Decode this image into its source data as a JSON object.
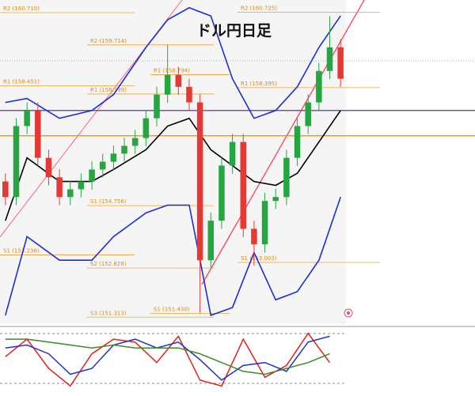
{
  "chart_data": [
    {
      "type": "candlestick",
      "title": "ドル円日足",
      "x": [
        0,
        1,
        2,
        3,
        4,
        5,
        6,
        7,
        8,
        9,
        10,
        11,
        12,
        13,
        14,
        15,
        16,
        17,
        18,
        19,
        20,
        21,
        22,
        23,
        24,
        25,
        26,
        27,
        28,
        29,
        30,
        31
      ],
      "open": [
        155.5,
        155.02,
        157.21,
        157.69,
        156.23,
        155.63,
        155.02,
        155.26,
        155.5,
        155.87,
        156.11,
        156.36,
        156.6,
        156.84,
        157.45,
        158.18,
        158.79,
        158.42,
        157.94,
        153.07,
        154.29,
        155.99,
        156.72,
        154.04,
        153.56,
        154.9,
        155.02,
        156.23,
        157.21,
        157.94,
        158.91,
        159.64
      ],
      "high": [
        155.75,
        157.46,
        157.94,
        157.94,
        156.48,
        155.88,
        155.51,
        155.75,
        156.12,
        156.36,
        156.61,
        156.85,
        157.09,
        157.7,
        158.43,
        159.72,
        159.04,
        158.67,
        158.19,
        154.54,
        156.24,
        156.97,
        156.97,
        154.29,
        155.15,
        155.27,
        156.48,
        157.46,
        158.19,
        159.16,
        160.6,
        159.89
      ],
      "low": [
        154.77,
        154.77,
        156.96,
        155.98,
        155.38,
        154.77,
        154.77,
        155.01,
        155.25,
        155.62,
        155.86,
        156.11,
        156.35,
        156.59,
        157.2,
        157.93,
        158.17,
        157.69,
        151.45,
        152.82,
        154.04,
        155.74,
        153.79,
        152.9,
        153.31,
        154.65,
        154.77,
        155.98,
        156.96,
        157.69,
        158.66,
        158.42
      ],
      "close": [
        155.02,
        157.21,
        157.69,
        156.23,
        155.63,
        155.02,
        155.26,
        155.5,
        155.87,
        156.11,
        156.36,
        156.6,
        156.84,
        157.45,
        158.18,
        158.79,
        158.42,
        157.94,
        153.07,
        154.29,
        155.99,
        156.72,
        154.04,
        153.56,
        154.9,
        155.02,
        156.23,
        157.21,
        157.94,
        158.91,
        159.64,
        158.67
      ],
      "up_color": "#26a641",
      "down_color": "#e53935",
      "xlim": [
        -0.5,
        31.5
      ],
      "ylim": [
        151.1,
        161.1
      ],
      "lines": [
        {
          "color": "#000000",
          "x": [
            0,
            2,
            5,
            8,
            10,
            13,
            15,
            17,
            19,
            21,
            23,
            25,
            27,
            29,
            31
          ],
          "values": [
            154.29,
            156.23,
            155.5,
            155.5,
            155.87,
            156.48,
            157.21,
            157.45,
            156.48,
            155.99,
            155.5,
            155.38,
            155.75,
            156.72,
            157.69
          ]
        },
        {
          "color": "#1a2fd6",
          "x": [
            0,
            2,
            5,
            8,
            10,
            13,
            15,
            17,
            19,
            21,
            23,
            25,
            27,
            29,
            31
          ],
          "values": [
            157.94,
            158.06,
            157.45,
            157.69,
            158.18,
            159.64,
            160.49,
            160.86,
            160.61,
            158.67,
            157.45,
            157.69,
            158.42,
            159.64,
            160.61
          ]
        },
        {
          "color": "#1a2fd6",
          "x": [
            0,
            2,
            5,
            8,
            10,
            13,
            15,
            17,
            19,
            21,
            23,
            25,
            27,
            29,
            31
          ],
          "values": [
            151.37,
            153.8,
            153.07,
            153.07,
            153.8,
            154.53,
            154.77,
            154.77,
            151.37,
            151.61,
            153.31,
            151.85,
            152.1,
            153.07,
            155.02
          ]
        }
      ],
      "hlines": [
        {
          "value": 157.69,
          "color": "#7b4fb0"
        },
        {
          "value": 156.91,
          "color": "#f39c12"
        }
      ],
      "pivot_color": "#f0a030",
      "pivot_periods": [
        [
          {
            "value": 160.71,
            "label": "R2 (160.710)"
          },
          {
            "value": 158.451,
            "label": "R1 (158.451)"
          },
          {
            "value": 153.236,
            "label": "S1 (153.236)"
          }
        ],
        [
          {
            "value": 159.714,
            "label": "R2 (159.714)"
          },
          {
            "value": 158.199,
            "label": "R1 (158.199)"
          },
          {
            "value": 154.756,
            "label": "S1 (154.756)"
          },
          {
            "value": 152.828,
            "label": "S2 (152.828)"
          },
          {
            "value": 151.313,
            "label": "S3 (151.313)"
          }
        ],
        [
          {
            "value": 158.794,
            "label": "R1 (158.794)"
          },
          {
            "value": 151.43,
            "label": "S1 (151.430)"
          }
        ],
        [
          {
            "value": 160.725,
            "label": "R2 (160.725)"
          },
          {
            "value": 158.395,
            "label": "R1 (158.395)"
          },
          {
            "value": 153.003,
            "label": "S1 (153.003)"
          }
        ]
      ]
    },
    {
      "type": "line",
      "x": [
        0,
        2,
        4,
        6,
        8,
        10,
        12,
        14,
        16,
        18,
        20,
        22,
        24,
        26,
        28,
        30
      ],
      "xlim": [
        -0.5,
        31.5
      ],
      "ylim": [
        0,
        100
      ],
      "series": [
        {
          "color": "#e0201a",
          "values": [
            55,
            85,
            35,
            5,
            60,
            85,
            80,
            45,
            90,
            15,
            5,
            85,
            20,
            40,
            95,
            45
          ]
        },
        {
          "color": "#2233cc",
          "values": [
            70,
            75,
            60,
            25,
            35,
            75,
            85,
            70,
            80,
            50,
            15,
            40,
            45,
            30,
            80,
            90
          ]
        },
        {
          "color": "#3a8a2a",
          "values": [
            85,
            85,
            80,
            75,
            70,
            75,
            70,
            70,
            70,
            60,
            45,
            30,
            25,
            35,
            45,
            60
          ]
        }
      ]
    }
  ]
}
